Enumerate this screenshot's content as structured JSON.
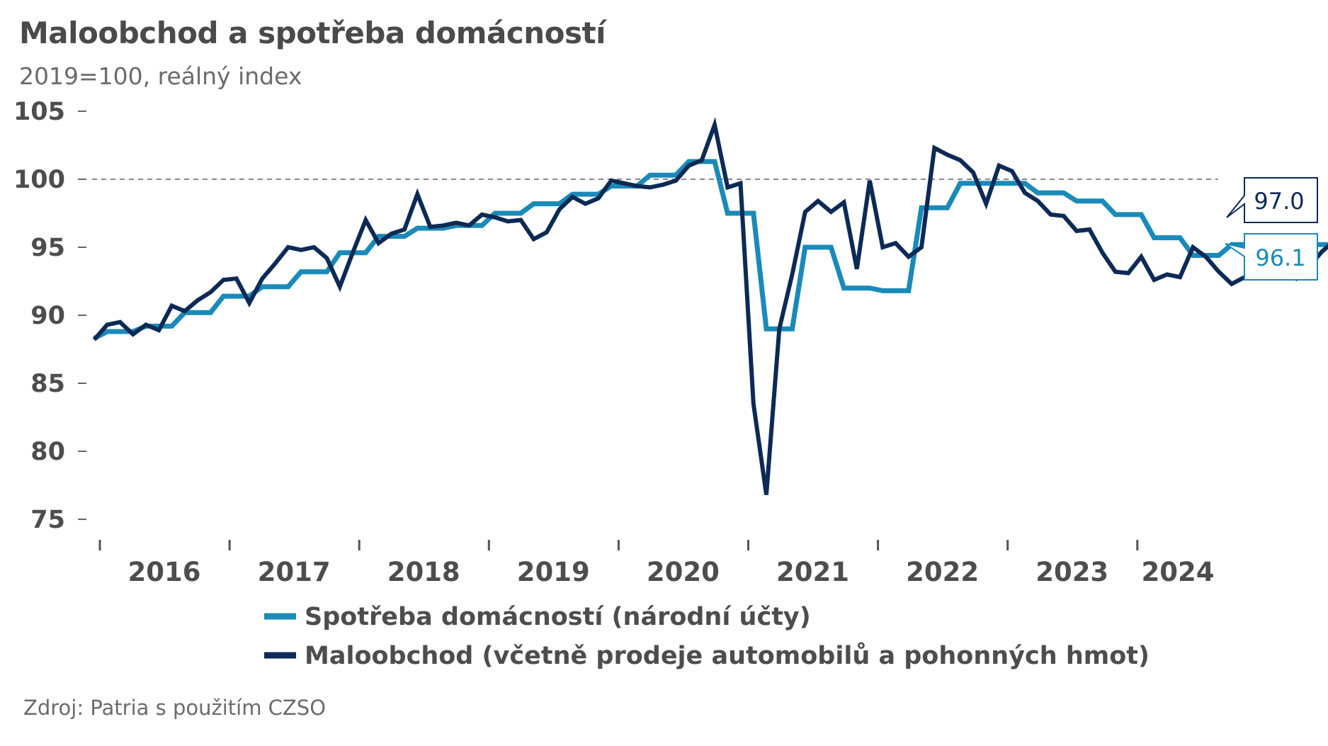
{
  "title": "Maloobchod a spotřeba domácností",
  "subtitle": "2019=100, reálný index",
  "source": "Zdroj: Patria s použitím CZSO",
  "colors": {
    "spotreba": "#1a8ab8",
    "maloobchod": "#0d2a56",
    "text": "#4d4d4d",
    "refline": "#888888"
  },
  "chart_data": {
    "type": "line",
    "x_unit": "month index (0 = Jan 2016)",
    "ylim": [
      75,
      105
    ],
    "yticks": [
      105,
      100,
      95,
      90,
      85,
      80,
      75
    ],
    "reference_line": 100,
    "xticks": [
      "2016",
      "2017",
      "2018",
      "2019",
      "2020",
      "2021",
      "2022",
      "2023",
      "2024"
    ],
    "legend": [
      "Spotřeba domácností (národní účty)",
      "Maloobchod (včetně prodeje automobilů a pohonných hmot)"
    ],
    "series": [
      {
        "name": "Spotřeba domácností (národní účty)",
        "key": "spotreba",
        "last_label": "96.1",
        "values": [
          88.3,
          88.8,
          88.8,
          88.8,
          89.2,
          89.2,
          89.2,
          90.2,
          90.2,
          90.2,
          91.4,
          91.4,
          91.4,
          92.1,
          92.1,
          92.1,
          93.2,
          93.2,
          93.2,
          94.6,
          94.6,
          94.6,
          95.8,
          95.8,
          95.8,
          96.4,
          96.4,
          96.4,
          96.6,
          96.6,
          96.6,
          97.5,
          97.5,
          97.5,
          98.2,
          98.2,
          98.2,
          98.9,
          98.9,
          98.9,
          99.5,
          99.5,
          99.5,
          100.3,
          100.3,
          100.3,
          101.3,
          101.3,
          101.3,
          97.5,
          97.5,
          97.5,
          89.0,
          89.0,
          89.0,
          95.0,
          95.0,
          95.0,
          92.0,
          92.0,
          92.0,
          91.8,
          91.8,
          91.8,
          97.9,
          97.9,
          97.9,
          99.7,
          99.7,
          99.7,
          99.7,
          99.7,
          99.7,
          99.0,
          99.0,
          99.0,
          98.4,
          98.4,
          98.4,
          97.4,
          97.4,
          97.4,
          95.7,
          95.7,
          95.7,
          94.4,
          94.4,
          94.4,
          95.2,
          95.2,
          95.2,
          94.6,
          94.6,
          94.6,
          95.2,
          95.2,
          95.2,
          95.9,
          95.9,
          95.9,
          96.1,
          96.1,
          96.1
        ]
      },
      {
        "name": "Maloobchod (včetně prodeje automobilů a pohonných hmot)",
        "key": "maloobchod",
        "last_label": "97.0",
        "values": [
          88.2,
          89.3,
          89.5,
          88.6,
          89.3,
          88.9,
          90.7,
          90.3,
          91.1,
          91.7,
          92.6,
          92.7,
          90.9,
          92.7,
          93.8,
          95.0,
          94.8,
          95.0,
          94.2,
          92.1,
          94.6,
          97.0,
          95.3,
          96.0,
          96.3,
          98.9,
          96.5,
          96.6,
          96.8,
          96.6,
          97.4,
          97.2,
          96.9,
          97.0,
          95.6,
          96.1,
          97.8,
          98.7,
          98.2,
          98.6,
          99.9,
          99.7,
          99.5,
          99.4,
          99.6,
          99.9,
          101.0,
          101.4,
          104.0,
          99.4,
          99.7,
          83.5,
          76.8,
          89.0,
          93.0,
          97.6,
          98.4,
          97.6,
          98.3,
          93.4,
          99.9,
          95.0,
          95.3,
          94.3,
          95.0,
          102.3,
          101.8,
          101.4,
          100.5,
          98.2,
          101.0,
          100.6,
          99.0,
          98.4,
          97.4,
          97.3,
          96.2,
          96.3,
          94.6,
          93.2,
          93.1,
          94.3,
          92.6,
          93.0,
          92.8,
          95.0,
          94.3,
          93.2,
          92.3,
          92.8,
          93.0,
          93.6,
          93.4,
          92.7,
          93.6,
          94.7,
          95.5,
          96.8,
          96.8,
          96.8,
          96.1,
          95.1,
          96.1,
          96.5,
          97.0
        ]
      }
    ]
  }
}
